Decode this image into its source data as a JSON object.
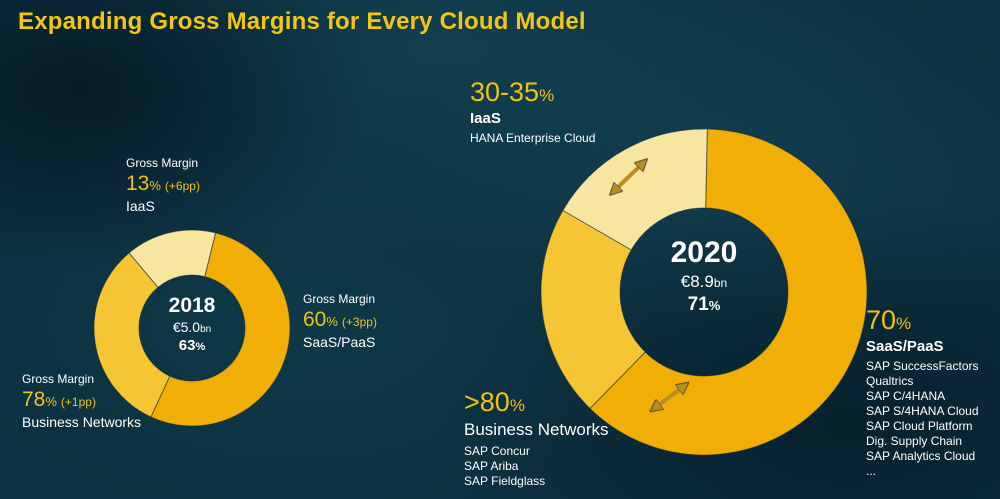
{
  "slide": {
    "title": "Expanding Gross Margins for Every Cloud Model"
  },
  "colors": {
    "title_yellow": "#F3C614",
    "value_yellow": "#EFC119",
    "segment_gold": "#F1AE06",
    "segment_gold_light": "#F6C533",
    "segment_pale": "#F8E5A0",
    "arrow_gold": "#B98E20",
    "text_white": "#FFFFFF",
    "background_teal": "#0C3140"
  },
  "chart_data": [
    {
      "type": "donut",
      "name": "cloud-gross-margin-2018",
      "center_label": {
        "year": "2018",
        "revenue": "€5.0",
        "revenue_unit": "bn",
        "margin": "63",
        "margin_suffix": "%"
      },
      "start_angle_deg": 320,
      "segments": [
        {
          "label": "IaaS",
          "share_est_pct": 15,
          "gross_margin_pct": "13",
          "delta": "(+6pp)",
          "color_key": "segment_pale"
        },
        {
          "label": "SaaS/PaaS",
          "share_est_pct": 53,
          "gross_margin_pct": "60",
          "delta": "(+3pp)",
          "color_key": "segment_gold"
        },
        {
          "label": "Business Networks",
          "share_est_pct": 32,
          "gross_margin_pct": "78",
          "delta": "(+1pp)",
          "color_key": "segment_gold_light"
        }
      ],
      "callouts": [
        {
          "heading": "Gross Margin",
          "value": "13",
          "suffix": "%",
          "delta": "(+6pp)",
          "label": "IaaS"
        },
        {
          "heading": "Gross Margin",
          "value": "60",
          "suffix": "%",
          "delta": "(+3pp)",
          "label": "SaaS/PaaS"
        },
        {
          "heading": "Gross Margin",
          "value": "78",
          "suffix": "%",
          "delta": "(+1pp)",
          "label": "Business Networks"
        }
      ]
    },
    {
      "type": "donut",
      "name": "cloud-gross-margin-2020",
      "center_label": {
        "year": "2020",
        "revenue": "€8.9",
        "revenue_unit": "bn",
        "margin": "71",
        "margin_suffix": "%"
      },
      "start_angle_deg": 300,
      "segments": [
        {
          "label": "IaaS",
          "share_est_pct": 17,
          "gross_margin_pct": "30-35",
          "color_key": "segment_pale"
        },
        {
          "label": "SaaS/PaaS",
          "share_est_pct": 62,
          "gross_margin_pct": "70",
          "color_key": "segment_gold"
        },
        {
          "label": "Business Networks",
          "share_est_pct": 21,
          "gross_margin_pct": ">80",
          "color_key": "segment_gold_light"
        }
      ],
      "callouts": [
        {
          "value": "30-35",
          "suffix": "%",
          "label": "IaaS",
          "sublines": [
            "HANA Enterprise Cloud"
          ]
        },
        {
          "value": ">80",
          "suffix": "%",
          "label": "Business Networks",
          "sublines": [
            "SAP Concur",
            "SAP Ariba",
            "SAP Fieldglass"
          ]
        },
        {
          "value": "70",
          "suffix": "%",
          "label": "SaaS/PaaS",
          "sublines": [
            "SAP SuccessFactors",
            "Qualtrics",
            "SAP C/4HANA",
            "SAP S/4HANA Cloud",
            "SAP Cloud Platform",
            "Dig. Supply Chain",
            "SAP Analytics Cloud",
            "..."
          ]
        }
      ]
    }
  ]
}
